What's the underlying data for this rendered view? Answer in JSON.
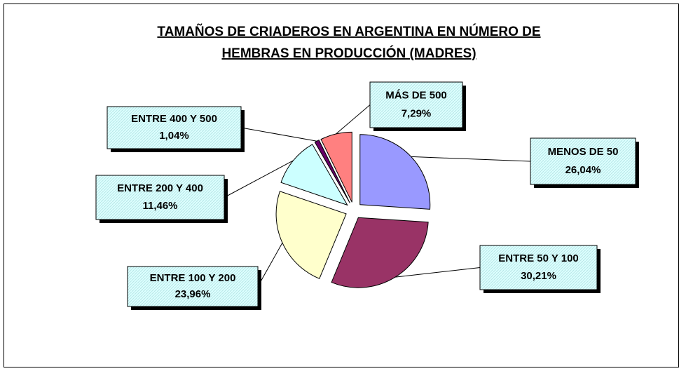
{
  "chart_data": {
    "type": "pie",
    "title": [
      "TAMAÑOS DE CRIADEROS EN ARGENTINA EN NÚMERO DE",
      "HEMBRAS EN PRODUCCIÓN (MADRES)"
    ],
    "categories": [
      "MENOS DE 50",
      "ENTRE 50 Y 100",
      "ENTRE 100 Y 200",
      "ENTRE 200 Y 400",
      "ENTRE 400 Y 500",
      "MÁS DE 500"
    ],
    "values": [
      26.04,
      30.21,
      23.96,
      11.46,
      1.04,
      7.29
    ],
    "value_labels": [
      "26,04%",
      "30,21%",
      "23,96%",
      "11,46%",
      "1,04%",
      "7,29%"
    ],
    "colors": [
      "#9999ff",
      "#993366",
      "#ffffcc",
      "#ccffff",
      "#660066",
      "#ff8080"
    ]
  }
}
